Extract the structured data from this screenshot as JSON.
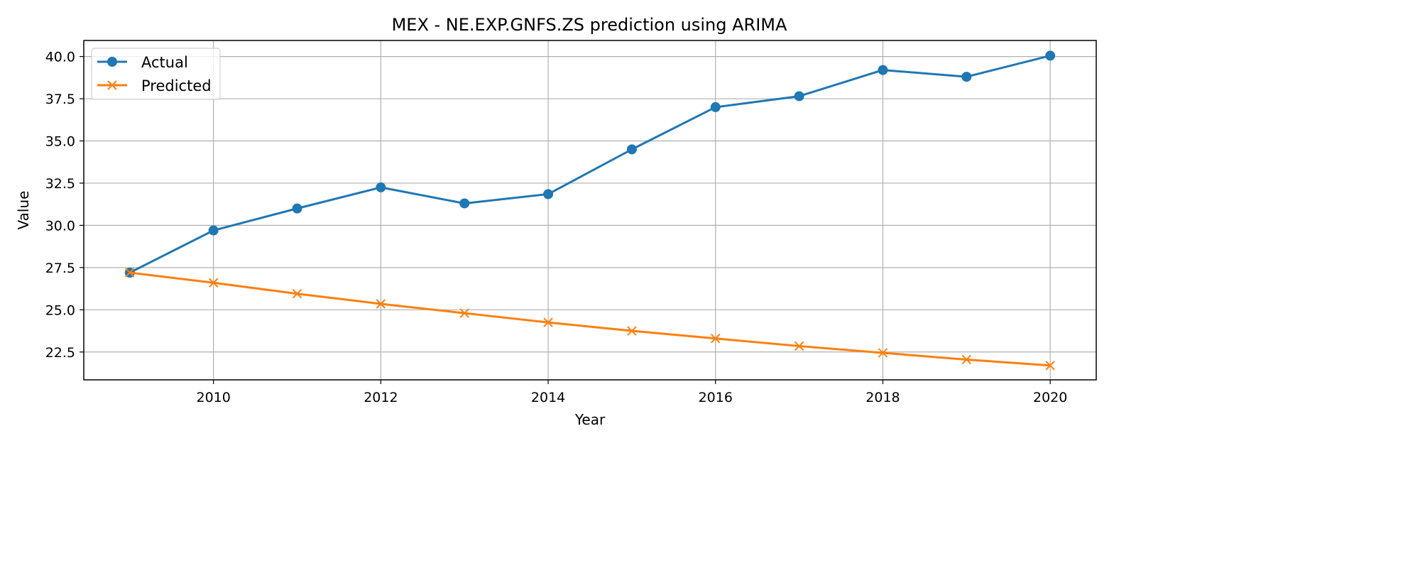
{
  "chart_data": {
    "type": "line",
    "title": "MEX - NE.EXP.GNFS.ZS prediction using ARIMA",
    "xlabel": "Year",
    "ylabel": "Value",
    "xlim": [
      2008.45,
      2020.55
    ],
    "ylim": [
      20.85,
      40.95
    ],
    "xticks": [
      2010,
      2012,
      2014,
      2016,
      2018,
      2020
    ],
    "yticks": [
      22.5,
      25.0,
      27.5,
      30.0,
      32.5,
      35.0,
      37.5,
      40.0
    ],
    "ytick_labels": [
      "22.5",
      "25.0",
      "27.5",
      "30.0",
      "32.5",
      "35.0",
      "37.5",
      "40.0"
    ],
    "grid": true,
    "legend_position": "upper-left",
    "x": [
      2009,
      2010,
      2011,
      2012,
      2013,
      2014,
      2015,
      2016,
      2017,
      2018,
      2019,
      2020
    ],
    "series": [
      {
        "name": "Actual",
        "color": "#1f77b4",
        "marker": "circle",
        "values": [
          27.2,
          29.7,
          31.0,
          32.25,
          31.3,
          31.85,
          34.5,
          37.0,
          37.65,
          39.2,
          38.8,
          40.05
        ]
      },
      {
        "name": "Predicted",
        "color": "#ff7f0e",
        "marker": "x",
        "values": [
          27.2,
          26.6,
          25.95,
          25.35,
          24.8,
          24.25,
          23.75,
          23.3,
          22.85,
          22.45,
          22.05,
          21.7
        ]
      }
    ]
  }
}
